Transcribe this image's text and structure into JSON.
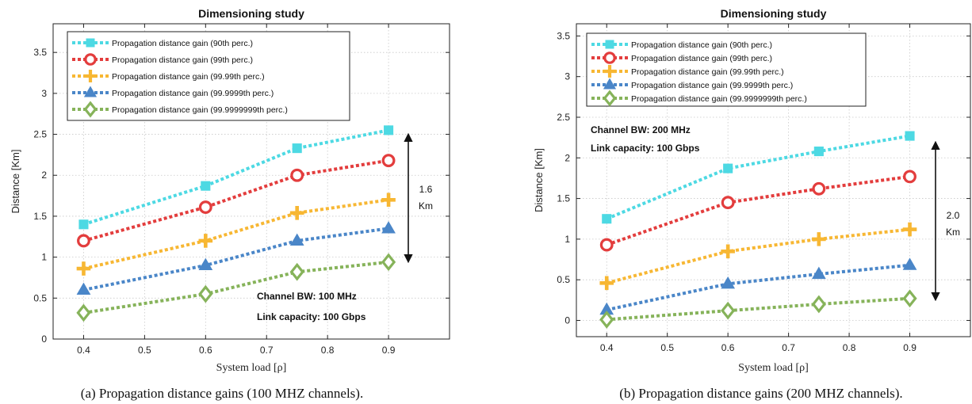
{
  "chart_data": [
    {
      "type": "line",
      "title": "Dimensioning study",
      "xlabel": "System load [ρ]",
      "ylabel": "Distance [Km]",
      "x": [
        0.4,
        0.6,
        0.75,
        0.9
      ],
      "xlim": [
        0.35,
        1.0
      ],
      "ylim": [
        0,
        3.85
      ],
      "xticks": [
        "0.4",
        "0.5",
        "0.6",
        "0.7",
        "0.8",
        "0.9"
      ],
      "xtick_values": [
        0.4,
        0.5,
        0.6,
        0.7,
        0.8,
        0.9
      ],
      "yticks": [
        "0",
        "0.5",
        "1",
        "1.5",
        "2",
        "2.5",
        "3",
        "3.5"
      ],
      "ytick_values": [
        0,
        0.5,
        1,
        1.5,
        2,
        2.5,
        3,
        3.5
      ],
      "grid": true,
      "legend_position": "top-left",
      "series": [
        {
          "name": "Propagation distance gain (90th perc.)",
          "values": [
            1.4,
            1.87,
            2.33,
            2.55
          ],
          "color": "#4dd9e3",
          "marker": "square"
        },
        {
          "name": "Propagation distance gain (99th perc.)",
          "values": [
            1.2,
            1.61,
            2.0,
            2.18
          ],
          "color": "#e33d3d",
          "marker": "circle"
        },
        {
          "name": "Propagation distance gain (99.99th perc.)",
          "values": [
            0.86,
            1.2,
            1.54,
            1.7
          ],
          "color": "#f7b733",
          "marker": "plus"
        },
        {
          "name": "Propagation distance gain (99.9999th perc.)",
          "values": [
            0.6,
            0.9,
            1.2,
            1.35
          ],
          "color": "#4a86c8",
          "marker": "triangle"
        },
        {
          "name": "Propagation distance gain (99.9999999th perc.)",
          "values": [
            0.32,
            0.55,
            0.82,
            0.94
          ],
          "color": "#86b35a",
          "marker": "diamond"
        }
      ],
      "annotations": {
        "arrow_label_line1": "1.6",
        "arrow_label_line2": "Km",
        "text_line1": "Channel BW: 100 MHz",
        "text_line2": "Link capacity: 100 Gbps"
      },
      "caption": "(a) Propagation distance gains (100 MHZ channels)."
    },
    {
      "type": "line",
      "title": "Dimensioning study",
      "xlabel": "System load [ρ]",
      "ylabel": "Distance [Km]",
      "x": [
        0.4,
        0.6,
        0.75,
        0.9
      ],
      "xlim": [
        0.35,
        1.0
      ],
      "ylim": [
        -0.2,
        3.65
      ],
      "xticks": [
        "0.4",
        "0.5",
        "0.6",
        "0.7",
        "0.8",
        "0.9"
      ],
      "xtick_values": [
        0.4,
        0.5,
        0.6,
        0.7,
        0.8,
        0.9
      ],
      "yticks": [
        "0",
        "0.5",
        "1",
        "1.5",
        "2",
        "2.5",
        "3",
        "3.5"
      ],
      "ytick_values": [
        0,
        0.5,
        1,
        1.5,
        2,
        2.5,
        3,
        3.5
      ],
      "grid": true,
      "legend_position": "top-left",
      "series": [
        {
          "name": "Propagation distance gain (90th perc.)",
          "values": [
            1.25,
            1.87,
            2.08,
            2.27
          ],
          "color": "#4dd9e3",
          "marker": "square"
        },
        {
          "name": "Propagation distance gain (99th perc.)",
          "values": [
            0.93,
            1.45,
            1.62,
            1.77
          ],
          "color": "#e33d3d",
          "marker": "circle"
        },
        {
          "name": "Propagation distance gain (99.99th perc.)",
          "values": [
            0.46,
            0.85,
            1.0,
            1.12
          ],
          "color": "#f7b733",
          "marker": "plus"
        },
        {
          "name": "Propagation distance gain (99.9999th perc.)",
          "values": [
            0.13,
            0.45,
            0.57,
            0.68
          ],
          "color": "#4a86c8",
          "marker": "triangle"
        },
        {
          "name": "Propagation distance gain (99.9999999th perc.)",
          "values": [
            0.01,
            0.12,
            0.2,
            0.27
          ],
          "color": "#86b35a",
          "marker": "diamond"
        }
      ],
      "annotations": {
        "arrow_label_line1": "2.0",
        "arrow_label_line2": "Km",
        "text_line1": "Channel BW: 200 MHz",
        "text_line2": "Link capacity: 100 Gbps"
      },
      "caption": "(b) Propagation distance gains (200 MHZ channels)."
    }
  ]
}
